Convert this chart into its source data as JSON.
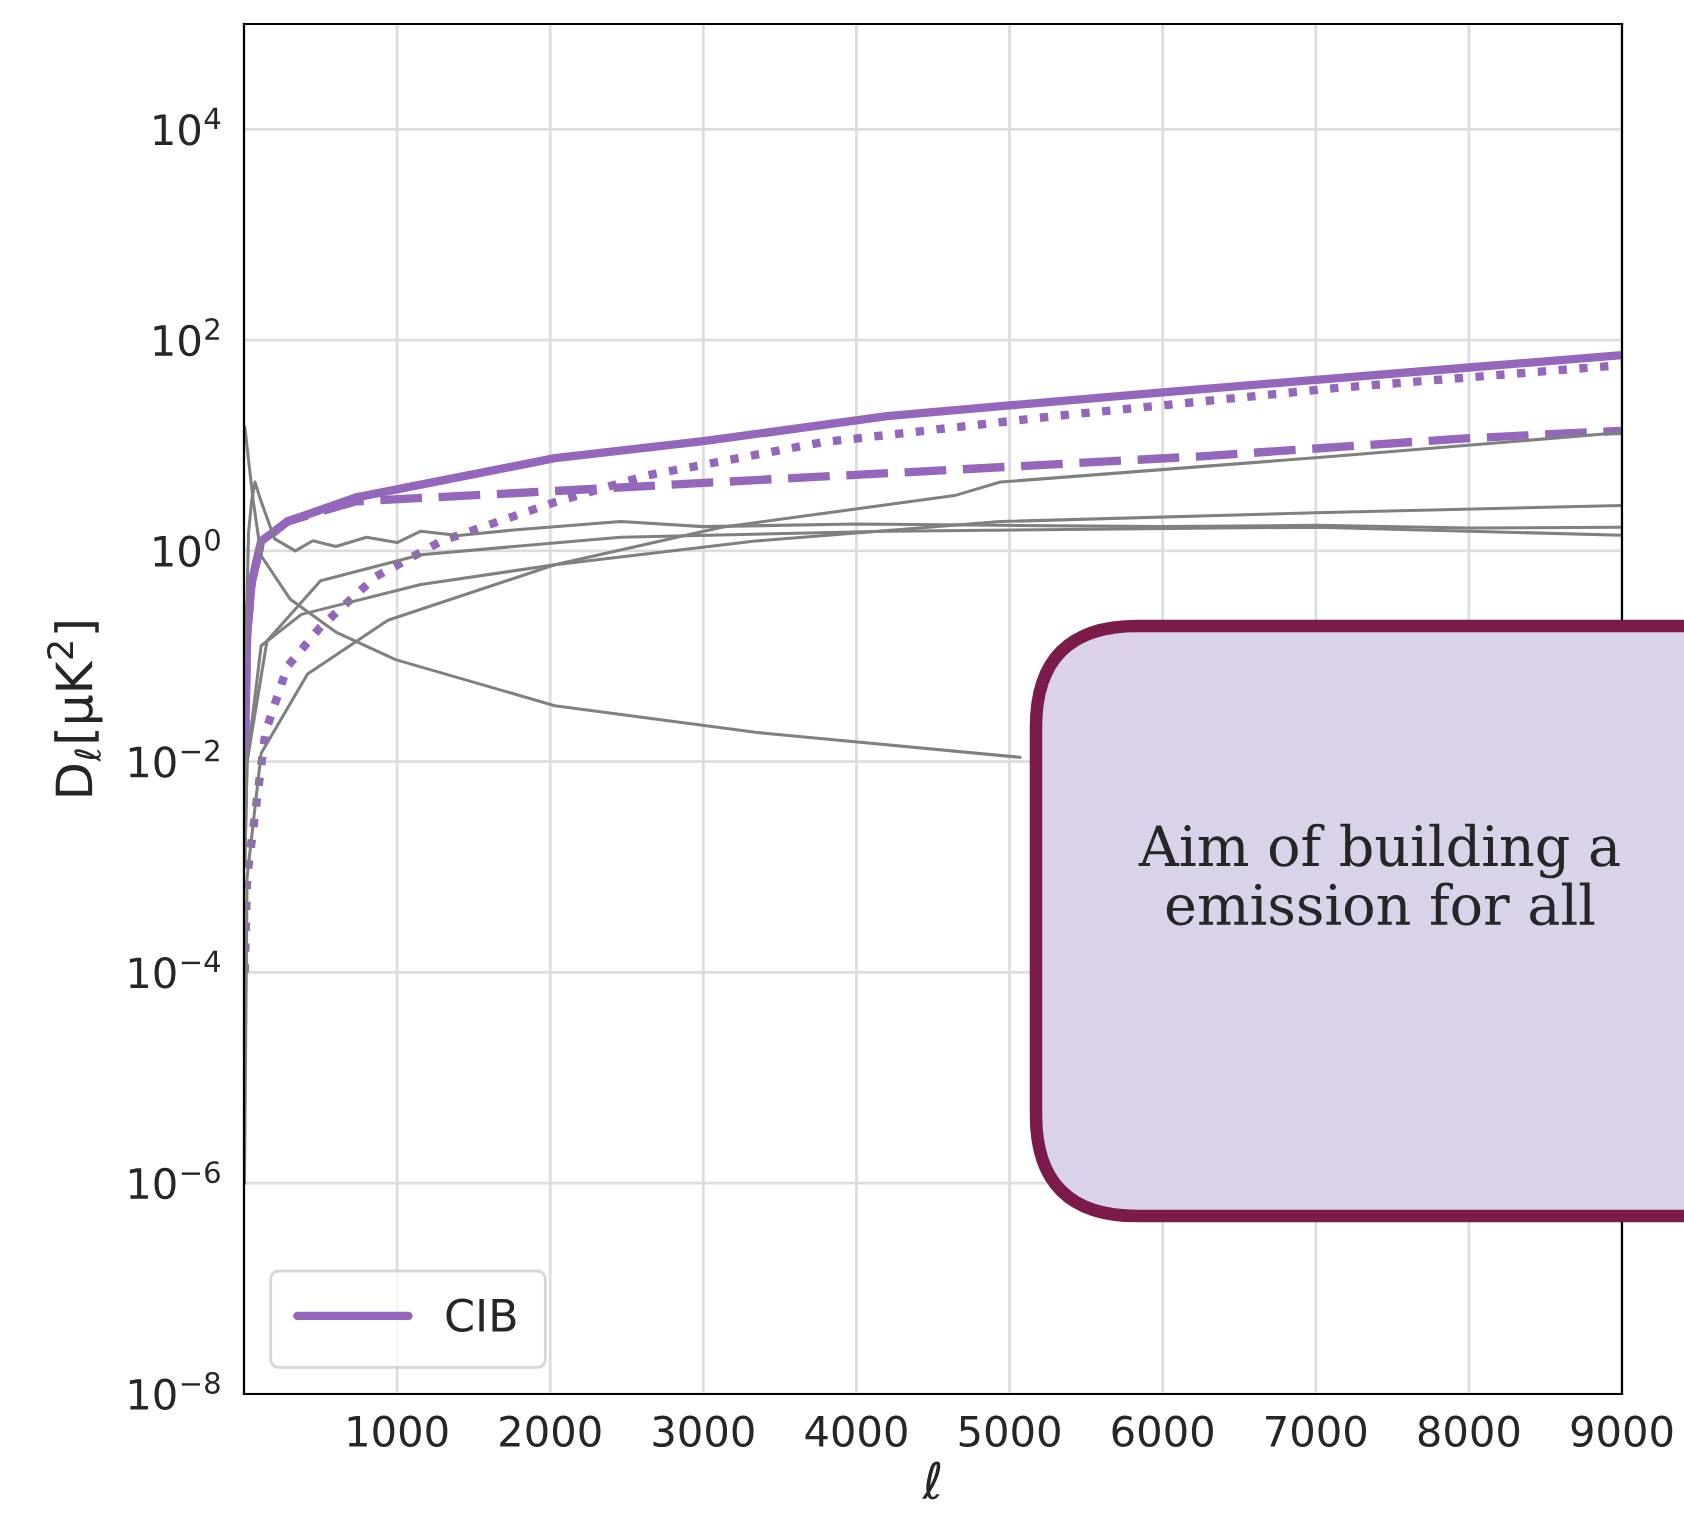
{
  "chart_data": {
    "type": "line",
    "xlabel": "ℓ",
    "ylabel": "D$_{ℓ}$[μK$^{2}$]",
    "log": "y",
    "grid": true,
    "legend": "bottom left",
    "xlim": [
      0,
      9000
    ],
    "xticks": [
      1000,
      2000,
      3000,
      4000,
      5000,
      6000,
      7000,
      8000,
      9000
    ],
    "ylim": [
      1e-08,
      100000.0
    ],
    "yticks": [
      {
        "value": 1e-08,
        "label": "10$^{−8}$"
      },
      {
        "value": 1e-06,
        "label": "10$^{−6}$"
      },
      {
        "value": 0.0001,
        "label": "10$^{−4}$"
      },
      {
        "value": 0.01,
        "label": "10$^{−2}$"
      },
      {
        "value": 1,
        "label": "10$^{0}$"
      },
      {
        "value": 100,
        "label": "10$^{2}$"
      },
      {
        "value": 10000,
        "label": "10$^{4}$"
      }
    ],
    "annotations": [
      "Aim of building a\nemission for all"
    ],
    "series": [
      {
        "name": "CIB",
        "color": "#9467bd",
        "line_style": "solid",
        "x": [
          5,
          20,
          50,
          112,
          283,
          726,
          2030,
          3000,
          4200,
          5000,
          6000,
          7000,
          8000,
          9000
        ],
        "values": [
          0.01,
          0.16,
          0.5,
          1.24,
          1.9,
          3.2,
          7.6,
          11,
          19,
          24,
          32,
          42,
          55,
          72
        ]
      },
      {
        "color": "#9467bd",
        "line_style": "dotted",
        "x": [
          5,
          20,
          140,
          283,
          500,
          860,
          1290,
          2030,
          2630,
          3770,
          5290,
          7120,
          9000
        ],
        "values": [
          0.0001,
          0.0008,
          0.019,
          0.08,
          0.19,
          0.57,
          1.24,
          2.9,
          5.2,
          10.7,
          19,
          35,
          58
        ]
      },
      {
        "color": "#9467bd",
        "line_style": "dashed",
        "x": [
          5,
          20,
          50,
          112,
          283,
          726,
          2030,
          3340,
          4640,
          6250,
          7980,
          9000
        ],
        "values": [
          0.01,
          0.16,
          0.5,
          1.2,
          1.9,
          2.95,
          3.7,
          4.7,
          5.9,
          7.9,
          11.7,
          13.8
        ]
      },
      {
        "color": "#808080",
        "line_style": "solid",
        "x": [
          10,
          30,
          50,
          72,
          110,
          200,
          335,
          450,
          600,
          800,
          1000,
          1155,
          1400,
          1800,
          2460,
          3000,
          4000,
          4940,
          6000,
          7000,
          8000,
          9000
        ],
        "values": [
          0.1,
          1.5,
          3,
          4.5,
          3,
          1.3,
          1.0,
          1.25,
          1.1,
          1.35,
          1.2,
          1.54,
          1.4,
          1.6,
          1.9,
          1.7,
          1.8,
          1.75,
          1.7,
          1.75,
          1.65,
          1.68
        ]
      },
      {
        "color": "#808080",
        "line_style": "solid",
        "x": [
          5,
          60,
          112,
          300,
          600,
          990,
          2030,
          3340,
          5070
        ],
        "values": [
          15,
          3,
          0.9,
          0.35,
          0.17,
          0.093,
          0.034,
          0.019,
          0.011
        ]
      },
      {
        "color": "#808080",
        "line_style": "solid",
        "x": [
          3,
          20,
          112,
          415,
          940,
          2030,
          3120,
          4640,
          4940,
          7120,
          9000
        ],
        "values": [
          1e-06,
          0.0008,
          0.012,
          0.068,
          0.22,
          0.74,
          1.68,
          3.35,
          4.5,
          7.9,
          13.3
        ]
      },
      {
        "color": "#808080",
        "line_style": "solid",
        "x": [
          5,
          20,
          150,
          500,
          1155,
          2460,
          4200,
          7000,
          9000
        ],
        "values": [
          0.001,
          0.01,
          0.14,
          0.52,
          0.92,
          1.35,
          1.54,
          1.68,
          1.41
        ]
      },
      {
        "color": "#808080",
        "line_style": "solid",
        "x": [
          5,
          20,
          112,
          375,
          1155,
          2030,
          3340,
          4940,
          7000,
          9000
        ],
        "values": [
          0.001,
          0.01,
          0.126,
          0.25,
          0.48,
          0.74,
          1.24,
          1.9,
          2.3,
          2.7
        ]
      }
    ]
  }
}
